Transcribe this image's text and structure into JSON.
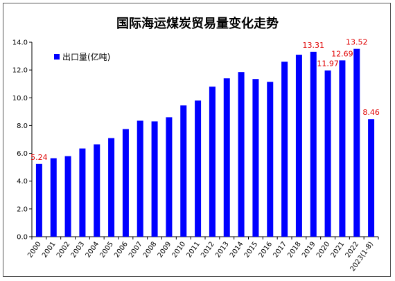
{
  "chart_data": {
    "type": "bar",
    "title": "国际海运煤炭贸易量变化走势",
    "categories": [
      "2000",
      "2001",
      "2002",
      "2003",
      "2004",
      "2005",
      "2006",
      "2007",
      "2008",
      "2009",
      "2010",
      "2011",
      "2012",
      "2013",
      "2014",
      "2015",
      "2016",
      "2017",
      "2018",
      "2019",
      "2020",
      "2021",
      "2022",
      "2023(1-8)"
    ],
    "series": [
      {
        "name": "出口量(亿吨)",
        "color": "#0000ff",
        "values": [
          5.24,
          5.65,
          5.8,
          6.35,
          6.65,
          7.1,
          7.75,
          8.35,
          8.3,
          8.6,
          9.45,
          9.8,
          10.8,
          11.4,
          11.85,
          11.35,
          11.15,
          12.6,
          13.1,
          13.31,
          11.97,
          12.69,
          13.52,
          8.46
        ]
      }
    ],
    "data_labels": [
      {
        "category": "2000",
        "text": "5.24"
      },
      {
        "category": "2019",
        "text": "13.31"
      },
      {
        "category": "2020",
        "text": "11.97"
      },
      {
        "category": "2021",
        "text": "12.69"
      },
      {
        "category": "2022",
        "text": "13.52"
      },
      {
        "category": "2023(1-8)",
        "text": "8.46"
      }
    ],
    "yticks": [
      "0.0",
      "2.0",
      "4.0",
      "6.0",
      "8.0",
      "10.0",
      "12.0",
      "14.0"
    ],
    "ylim": [
      0,
      14
    ],
    "xlabel": "",
    "ylabel": "",
    "grid": false,
    "legend_position": "top-left",
    "label_color": "#e00000"
  }
}
